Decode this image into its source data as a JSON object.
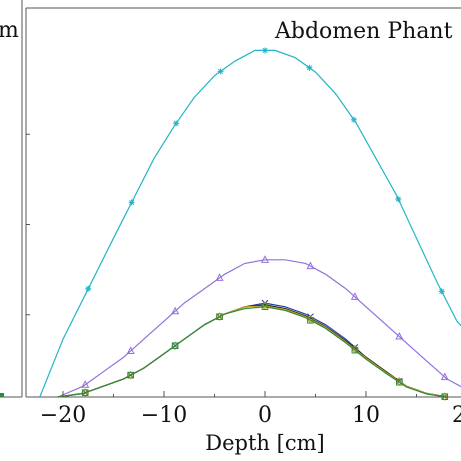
{
  "chart_data": {
    "type": "line",
    "left_panel_title_fragment": "m",
    "title": "Abdomen Phant",
    "xlabel": "Depth [cm]",
    "ylabel": "",
    "xlim": [
      -25.5,
      20
    ],
    "ylim": [
      0,
      1.0
    ],
    "x_ticks": [
      -20,
      -10,
      0,
      10
    ],
    "x_tick_labels": [
      "−20",
      "−10",
      "0",
      "10"
    ],
    "x_edge_label": "2",
    "grid": false,
    "series": [
      {
        "color": "#22b5c5",
        "marker": "star",
        "x": [
          -22.3,
          -20,
          -17.5,
          -15,
          -13,
          -11,
          -9,
          -7,
          -5,
          -3,
          -1,
          1,
          3,
          5,
          7,
          9,
          11,
          13,
          15,
          17,
          19,
          20
        ],
        "y": [
          0.0,
          0.16,
          0.3,
          0.44,
          0.55,
          0.66,
          0.75,
          0.83,
          0.89,
          0.93,
          0.96,
          0.96,
          0.94,
          0.9,
          0.84,
          0.76,
          0.66,
          0.56,
          0.44,
          0.32,
          0.21,
          0.18
        ],
        "marker_x": [
          -17.5,
          -13.2,
          -8.8,
          -4.4,
          0,
          4.4,
          8.8,
          13.2,
          17.5
        ]
      },
      {
        "color": "#9370db",
        "marker": "triangle",
        "x": [
          -20.5,
          -18,
          -16,
          -14,
          -12,
          -10,
          -8,
          -6,
          -4,
          -2,
          0,
          2,
          4,
          6,
          8,
          10,
          12,
          14,
          16,
          18,
          20
        ],
        "y": [
          0.0,
          0.03,
          0.07,
          0.11,
          0.16,
          0.21,
          0.26,
          0.3,
          0.34,
          0.37,
          0.38,
          0.38,
          0.37,
          0.34,
          0.3,
          0.25,
          0.2,
          0.15,
          0.1,
          0.05,
          0.02
        ],
        "marker_x": [
          -17.8,
          -13.3,
          -8.9,
          -4.5,
          0,
          4.5,
          8.9,
          13.3,
          17.8
        ]
      },
      {
        "color": "#1f3ea8",
        "marker": "cross",
        "x": [
          -20.5,
          -18,
          -16,
          -14,
          -12,
          -10,
          -8,
          -6,
          -4,
          -2,
          0,
          2,
          4,
          6,
          8,
          10,
          12,
          14,
          16,
          18
        ],
        "y": [
          0.0,
          0.01,
          0.03,
          0.05,
          0.08,
          0.12,
          0.16,
          0.2,
          0.23,
          0.25,
          0.26,
          0.25,
          0.23,
          0.2,
          0.16,
          0.11,
          0.07,
          0.03,
          0.01,
          0.0
        ],
        "marker_x": [
          -17.8,
          -13.3,
          -8.9,
          -4.5,
          0,
          4.5,
          8.9,
          13.3,
          17.8
        ]
      },
      {
        "color": "#111111",
        "marker": "none",
        "x": [
          -20.5,
          -18,
          -16,
          -14,
          -12,
          -10,
          -8,
          -6,
          -4,
          -2,
          0,
          2,
          4,
          6,
          8,
          10,
          12,
          14,
          16,
          18
        ],
        "y": [
          0.0,
          0.01,
          0.03,
          0.05,
          0.08,
          0.12,
          0.16,
          0.2,
          0.23,
          0.25,
          0.255,
          0.245,
          0.225,
          0.195,
          0.155,
          0.11,
          0.07,
          0.03,
          0.01,
          0.0
        ],
        "marker_x": []
      },
      {
        "color": "#c8a020",
        "marker": "diamond",
        "x": [
          -20.5,
          -18,
          -16,
          -14,
          -12,
          -10,
          -8,
          -6,
          -4,
          -2,
          0,
          2,
          4,
          6,
          8,
          10,
          12,
          14,
          16,
          18
        ],
        "y": [
          0.0,
          0.01,
          0.03,
          0.05,
          0.08,
          0.12,
          0.16,
          0.2,
          0.23,
          0.25,
          0.252,
          0.243,
          0.223,
          0.193,
          0.153,
          0.108,
          0.068,
          0.03,
          0.01,
          0.0
        ],
        "marker_x": [
          -17.8,
          -13.3,
          -8.9,
          -4.5,
          0,
          4.5,
          8.9,
          13.3,
          17.8
        ]
      },
      {
        "color": "#2e8b3a",
        "marker": "square",
        "x": [
          -20.5,
          -18,
          -16,
          -14,
          -12,
          -10,
          -8,
          -6,
          -4,
          -2,
          0,
          2,
          4,
          6,
          8,
          10,
          12,
          14,
          16,
          18
        ],
        "y": [
          0.0,
          0.01,
          0.03,
          0.05,
          0.08,
          0.12,
          0.16,
          0.2,
          0.23,
          0.245,
          0.25,
          0.24,
          0.22,
          0.19,
          0.15,
          0.105,
          0.065,
          0.028,
          0.008,
          0.0
        ],
        "marker_x": [
          -17.8,
          -13.3,
          -8.9,
          -4.5,
          0,
          4.5,
          8.9,
          13.3,
          17.8
        ]
      }
    ]
  }
}
